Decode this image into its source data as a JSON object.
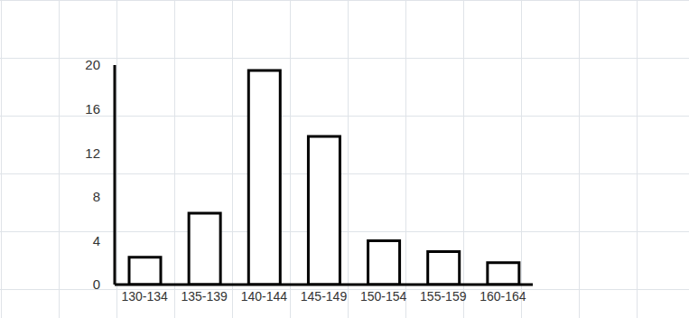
{
  "chart_data": {
    "type": "bar",
    "categories": [
      "130-134",
      "135-139",
      "140-144",
      "145-149",
      "150-154",
      "155-159",
      "160-164"
    ],
    "values": [
      2.5,
      6.5,
      19.5,
      13.5,
      4,
      3,
      2
    ],
    "color": "#000000",
    "ylim": [
      0,
      20
    ],
    "yticks": [
      0,
      4,
      8,
      12,
      16,
      20
    ]
  }
}
